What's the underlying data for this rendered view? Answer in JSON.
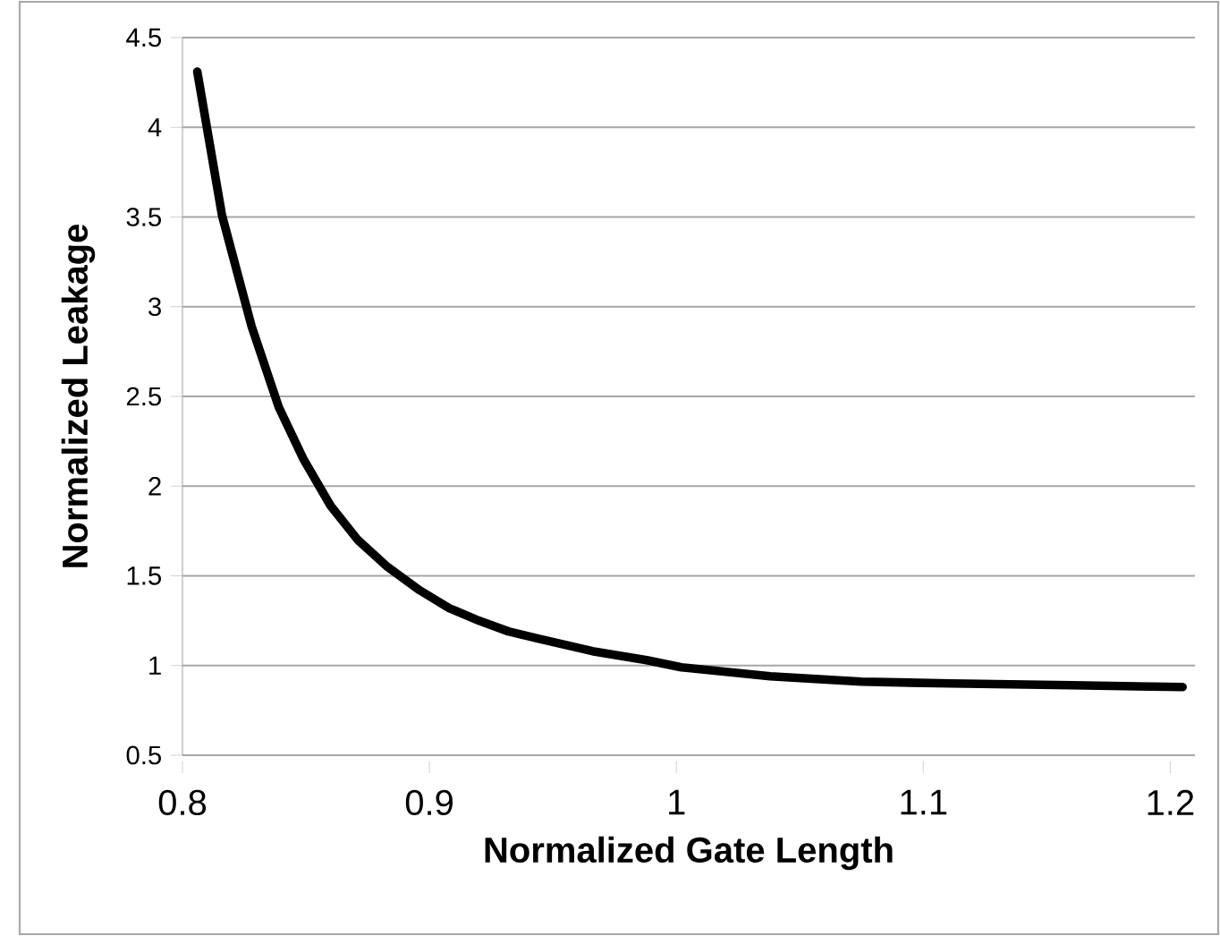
{
  "chart_data": {
    "type": "line",
    "xlabel": "Normalized Gate Length",
    "ylabel": "Normalized Leakage",
    "x": [
      0.806,
      0.816,
      0.828,
      0.839,
      0.849,
      0.86,
      0.871,
      0.883,
      0.896,
      0.908,
      0.92,
      0.932,
      0.944,
      0.966,
      0.988,
      1.002,
      1.038,
      1.075,
      1.111,
      1.16,
      1.205
    ],
    "values": [
      4.31,
      3.51,
      2.89,
      2.44,
      2.15,
      1.89,
      1.7,
      1.55,
      1.42,
      1.32,
      1.25,
      1.19,
      1.15,
      1.08,
      1.03,
      0.99,
      0.94,
      0.91,
      0.9,
      0.89,
      0.88
    ],
    "color": "#000000",
    "xlim": [
      0.8,
      1.21
    ],
    "ylim": [
      0.5,
      4.5
    ],
    "xticks": [
      0.8,
      0.9,
      1,
      1.1,
      1.2
    ],
    "yticks": [
      0.5,
      1,
      1.5,
      2,
      2.5,
      3,
      3.5,
      4,
      4.5
    ],
    "grid": "y",
    "marker": "none",
    "line_style": "solid"
  }
}
